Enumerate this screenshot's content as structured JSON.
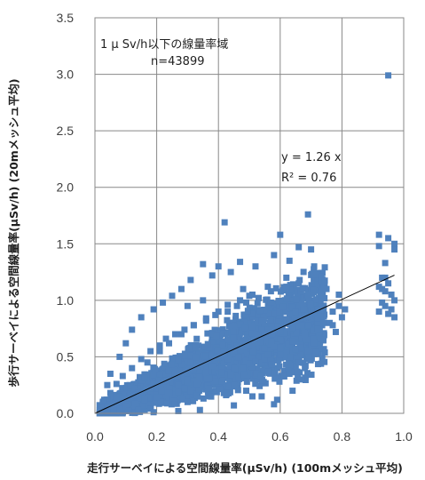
{
  "chart_data": {
    "type": "scatter",
    "xlabel": "走行サーベイによる空間線量率(μSv/h) (100mメッシュ平均)",
    "ylabel": "歩行サーベイによる空間線量率(μSv/h) (20mメッシュ平均)",
    "xlim": [
      0.0,
      1.0
    ],
    "ylim": [
      0.0,
      3.5
    ],
    "x_ticks": [
      "0.0",
      "0.2",
      "0.4",
      "0.6",
      "0.8",
      "1.0"
    ],
    "y_ticks": [
      "0.0",
      "0.5",
      "1.0",
      "1.5",
      "2.0",
      "2.5",
      "3.0",
      "3.5"
    ],
    "x_tick_values": [
      0.0,
      0.2,
      0.4,
      0.6,
      0.8,
      1.0
    ],
    "y_tick_values": [
      0.0,
      0.5,
      1.0,
      1.5,
      2.0,
      2.5,
      3.0,
      3.5
    ],
    "grid": true,
    "marker_color": "#4f81bd",
    "annotations": {
      "region_label": "1 μ Sv/h以下の線量率域",
      "n_label": "n=43899",
      "equation": "y = 1.26 x",
      "r_squared": "R² = 0.76"
    },
    "trendline": {
      "slope": 1.26,
      "intercept": 0,
      "x_range": [
        0.0,
        0.97
      ],
      "color": "#000000"
    },
    "series": [
      {
        "x": [
          0.95,
          0.42,
          0.69,
          0.6,
          0.66,
          0.92,
          0.97,
          0.94,
          0.93,
          0.7,
          0.63,
          0.58,
          0.52,
          0.47,
          0.44,
          0.4,
          0.38,
          0.35,
          0.31,
          0.28,
          0.25,
          0.22,
          0.19,
          0.15,
          0.12,
          0.1,
          0.08,
          0.05,
          0.04,
          0.03,
          0.02,
          0.03,
          0.04,
          0.06,
          0.08,
          0.1,
          0.13,
          0.16,
          0.2,
          0.24,
          0.29,
          0.33,
          0.37,
          0.41,
          0.45,
          0.5,
          0.55,
          0.6,
          0.65,
          0.7,
          0.73,
          0.74,
          0.72,
          0.69,
          0.66,
          0.62,
          0.57,
          0.53,
          0.49,
          0.46,
          0.43,
          0.39,
          0.36,
          0.32,
          0.29,
          0.26,
          0.23,
          0.21,
          0.18,
          0.15,
          0.12,
          0.09,
          0.07,
          0.05,
          0.3,
          0.35,
          0.48,
          0.51,
          0.56,
          0.62,
          0.71,
          0.75,
          0.67,
          0.64,
          0.68,
          0.54,
          0.59,
          0.45,
          0.27,
          0.34,
          0.19,
          0.14,
          0.11,
          0.17,
          0.21,
          0.24,
          0.28,
          0.32,
          0.36,
          0.4,
          0.43,
          0.47,
          0.5,
          0.53,
          0.57,
          0.61,
          0.65,
          0.69,
          0.72,
          0.92,
          0.95,
          0.97,
          0.93,
          0.96,
          0.94,
          0.95,
          0.92,
          0.97,
          0.93,
          0.96,
          0.94,
          0.95,
          0.97,
          0.92,
          0.94,
          0.77,
          0.8,
          0.78,
          0.76,
          0.79,
          0.81,
          0.77,
          0.79,
          0.18,
          0.26,
          0.31,
          0.36,
          0.46,
          0.55,
          0.63,
          0.74,
          0.58,
          0.14,
          0.22,
          0.38,
          0.42,
          0.5,
          0.6,
          0.67,
          0.49,
          0.51,
          0.63,
          0.66,
          0.69,
          0.71,
          0.3,
          0.33,
          0.37,
          0.41,
          0.44,
          0.48,
          0.52,
          0.56,
          0.6,
          0.64,
          0.68,
          0.72
        ],
        "y": [
          2.99,
          1.69,
          1.76,
          1.58,
          1.47,
          1.58,
          1.5,
          1.33,
          1.2,
          1.45,
          1.35,
          1.4,
          1.3,
          1.34,
          1.25,
          1.3,
          1.22,
          1.32,
          1.18,
          1.1,
          1.04,
          0.98,
          0.92,
          0.85,
          0.74,
          0.62,
          0.5,
          0.35,
          0.25,
          0.12,
          0.05,
          0.02,
          0.01,
          0.02,
          0.04,
          0.06,
          0.09,
          0.12,
          0.14,
          0.18,
          0.22,
          0.26,
          0.31,
          0.36,
          0.4,
          0.44,
          0.48,
          0.52,
          0.57,
          0.6,
          0.66,
          0.8,
          0.92,
          1.05,
          1.15,
          1.12,
          1.08,
          1.02,
          0.98,
          0.95,
          0.9,
          0.87,
          0.82,
          0.78,
          0.74,
          0.7,
          0.66,
          0.6,
          0.55,
          0.48,
          0.4,
          0.33,
          0.26,
          0.18,
          0.95,
          1.0,
          1.1,
          1.05,
          1.12,
          1.2,
          1.3,
          1.1,
          0.3,
          0.2,
          0.4,
          0.15,
          0.12,
          0.07,
          0.02,
          0.03,
          0.01,
          0.03,
          0.02,
          0.45,
          0.55,
          0.62,
          0.7,
          0.78,
          0.84,
          0.9,
          0.96,
          1.0,
          1.04,
          1.02,
          0.98,
          0.94,
          0.9,
          0.86,
          0.84,
          1.48,
          1.55,
          1.45,
          1.1,
          1.05,
          0.95,
          0.88,
          0.9,
          1.0,
          0.98,
          0.92,
          1.08,
          1.15,
          0.85,
          1.12,
          1.2,
          0.9,
          0.85,
          0.72,
          0.8,
          0.95,
          0.92,
          0.78,
          1.05,
          0.22,
          0.35,
          0.45,
          0.5,
          0.6,
          0.7,
          0.8,
          0.65,
          0.08,
          0.18,
          0.28,
          0.42,
          0.52,
          0.6,
          0.72,
          0.78,
          0.2,
          0.15,
          0.35,
          0.45,
          0.55,
          0.62,
          0.1,
          0.16,
          0.22,
          0.28,
          0.34,
          0.4,
          0.46,
          0.52,
          0.58,
          0.64,
          0.7,
          0.75
        ]
      }
    ]
  }
}
